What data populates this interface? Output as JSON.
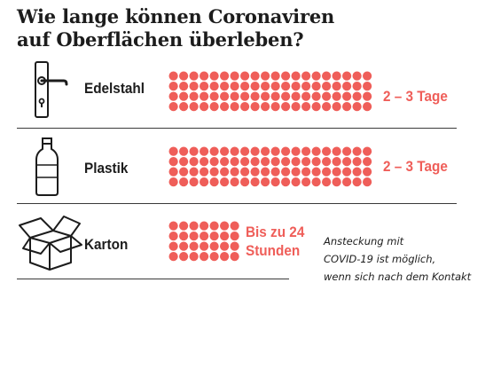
{
  "title_lines": [
    "Wie lange können Coronaviren",
    "auf Oberflächen überleben?"
  ],
  "colors": {
    "accent": "#ef5e59",
    "text": "#1c1c1c",
    "rule": "#3a3a3a"
  },
  "icons": [
    "door-handle-icon",
    "plastic-bottle-icon",
    "cardboard-box-icon"
  ],
  "chart_data": {
    "type": "table",
    "rows": [
      {
        "label": "Edelstahl",
        "duration": "2 – 3 Tage",
        "hours_min": 48,
        "hours_max": 72,
        "dot_rows": 4,
        "dot_cols": 20
      },
      {
        "label": "Plastik",
        "duration": "2 – 3 Tage",
        "hours_min": 48,
        "hours_max": 72,
        "dot_rows": 4,
        "dot_cols": 20
      },
      {
        "label": "Karton",
        "duration_lines": [
          "Bis zu 24",
          "Stunden"
        ],
        "hours_max": 24,
        "dot_rows": 4,
        "dot_cols": 7
      }
    ]
  },
  "note_lines": [
    "Ansteckung mit",
    "COVID-19 ist möglich,",
    "wenn sich nach dem Kontakt"
  ]
}
